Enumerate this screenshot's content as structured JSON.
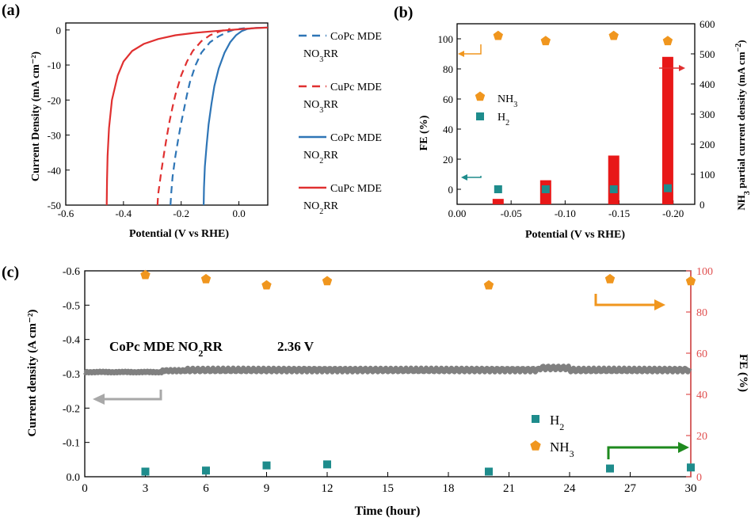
{
  "chart_data": [
    {
      "panel": "(a)",
      "type": "line",
      "xlabel": "Potential (V vs RHE)",
      "ylabel": "Current Density (mA cm⁻²)",
      "xlim": [
        -0.6,
        0.1
      ],
      "ylim": [
        -50,
        2
      ],
      "xticks": [
        "-0.6",
        "-0.4",
        "-0.2",
        "0.0"
      ],
      "yticks": [
        "0",
        "-10",
        "-20",
        "-30",
        "-40",
        "-50"
      ],
      "legend": [
        {
          "line1": "CoPc MDE",
          "line2a": "NO",
          "sub": "3",
          "line2b": "RR",
          "color": "#2e75b6",
          "dash": true
        },
        {
          "line1": "CuPc MDE",
          "line2a": "NO",
          "sub": "3",
          "line2b": "RR",
          "color": "#e03030",
          "dash": true
        },
        {
          "line1": "CoPc MDE",
          "line2a": "NO",
          "sub": "2",
          "line2b": "RR",
          "color": "#2e75b6",
          "dash": false
        },
        {
          "line1": "CuPc MDE",
          "line2a": "NO",
          "sub": "2",
          "line2b": "RR",
          "color": "#e03030",
          "dash": false
        }
      ],
      "series": [
        {
          "name": "CoPc MDE NO3RR",
          "color": "#2e75b6",
          "dash": true,
          "x": [
            -0.237,
            -0.235,
            -0.23,
            -0.22,
            -0.21,
            -0.2,
            -0.19,
            -0.18,
            -0.17,
            -0.15,
            -0.13,
            -0.1,
            -0.07,
            -0.04,
            -0.02,
            0.0,
            0.02
          ],
          "y": [
            -50,
            -47,
            -42,
            -36,
            -31,
            -26.5,
            -22.5,
            -18.5,
            -15,
            -10,
            -6.5,
            -3.5,
            -1.8,
            -0.6,
            0.0,
            0.3,
            0.5
          ]
        },
        {
          "name": "CuPc MDE NO3RR",
          "color": "#e03030",
          "dash": true,
          "x": [
            -0.282,
            -0.28,
            -0.27,
            -0.26,
            -0.25,
            -0.24,
            -0.23,
            -0.22,
            -0.2,
            -0.18,
            -0.16,
            -0.13,
            -0.1,
            -0.07,
            -0.05,
            -0.03
          ],
          "y": [
            -50,
            -47,
            -41,
            -35.5,
            -30.5,
            -26,
            -22,
            -18.5,
            -13,
            -9,
            -6,
            -3.2,
            -1.5,
            -0.5,
            0.0,
            0.3
          ]
        },
        {
          "name": "CoPc MDE NO2RR",
          "color": "#2e75b6",
          "dash": false,
          "x": [
            -0.122,
            -0.121,
            -0.118,
            -0.112,
            -0.105,
            -0.095,
            -0.085,
            -0.07,
            -0.05,
            -0.03,
            -0.01,
            0.01,
            0.03,
            0.06,
            0.1
          ],
          "y": [
            -50,
            -45,
            -39,
            -33,
            -27,
            -21,
            -16,
            -11,
            -6.5,
            -3.5,
            -1.5,
            -0.3,
            0.3,
            0.6,
            0.7
          ]
        },
        {
          "name": "CuPc MDE NO2RR",
          "color": "#e03030",
          "dash": false,
          "x": [
            -0.458,
            -0.457,
            -0.455,
            -0.45,
            -0.44,
            -0.42,
            -0.4,
            -0.37,
            -0.33,
            -0.28,
            -0.22,
            -0.15,
            -0.08,
            0.0,
            0.05,
            0.1
          ],
          "y": [
            -50,
            -43,
            -36,
            -28,
            -20,
            -13,
            -9,
            -6,
            -4,
            -2.6,
            -1.5,
            -0.8,
            -0.3,
            0.2,
            0.5,
            0.7
          ]
        }
      ]
    },
    {
      "panel": "(b)",
      "type": "bar",
      "xlabel": "Potential (V vs RHE)",
      "ylabel": "FE (%)",
      "ylabel2_a": "NH",
      "ylabel2_sub": "3",
      "ylabel2_b": " partial current density (mA cm",
      "ylabel2_sup": "−2",
      "ylabel2_c": ")",
      "xlim": [
        0.0,
        -0.22
      ],
      "ylim": [
        -10,
        110
      ],
      "y2lim": [
        0,
        600
      ],
      "xticks": [
        "0.00",
        "-0.05",
        "-0.10",
        "-0.15",
        "-0.20"
      ],
      "yticks": [
        "0",
        "20",
        "40",
        "60",
        "80",
        "100"
      ],
      "y2ticks": [
        "0",
        "100",
        "200",
        "300",
        "400",
        "500",
        "600"
      ],
      "x": [
        -0.038,
        -0.082,
        -0.145,
        -0.195
      ],
      "partial_current": [
        18,
        80,
        162,
        490
      ],
      "fe_nh3": [
        102,
        98.5,
        102,
        98.5
      ],
      "fe_h2": [
        0,
        0,
        0,
        0.7
      ],
      "legend_nh3_a": "NH",
      "legend_nh3_sub": "3",
      "legend_h2_a": "H",
      "legend_h2_sub": "2",
      "bar_color": "#e81818",
      "nh3_color": "#f0961e",
      "h2_color": "#1e8c8c"
    },
    {
      "panel": "(c)",
      "type": "scatter",
      "xlabel": "Time (hour)",
      "ylabel": "Current density (A cm⁻²)",
      "ylabel2": "FE (%)",
      "xlim": [
        0,
        30
      ],
      "ylim": [
        0.0,
        -0.6
      ],
      "y2lim": [
        0,
        100
      ],
      "xticks": [
        "0",
        "3",
        "6",
        "9",
        "12",
        "15",
        "18",
        "21",
        "24",
        "27",
        "30"
      ],
      "yticks": [
        "0.0",
        "-0.1",
        "-0.2",
        "-0.3",
        "-0.4",
        "-0.5",
        "-0.6"
      ],
      "y2ticks": [
        "0",
        "20",
        "40",
        "60",
        "80",
        "100"
      ],
      "annotation_a": "CoPc MDE NO",
      "annotation_sub": "2",
      "annotation_b": "RR",
      "annotation_voltage": "2.36 V",
      "current_level": -0.305,
      "time": [
        3,
        6,
        9,
        12,
        20,
        26,
        30
      ],
      "fe_nh3": [
        98,
        96,
        93,
        95,
        93,
        96,
        95
      ],
      "fe_h2": [
        2.5,
        3,
        5.5,
        6,
        2.5,
        4,
        4.5
      ],
      "legend_h2_a": "H",
      "legend_h2_sub": "2",
      "legend_nh3_a": "NH",
      "legend_nh3_sub": "3",
      "current_color": "#808080",
      "nh3_color": "#f0961e",
      "h2_color": "#1e8c8c",
      "fe_axis_color": "#e05050"
    }
  ]
}
